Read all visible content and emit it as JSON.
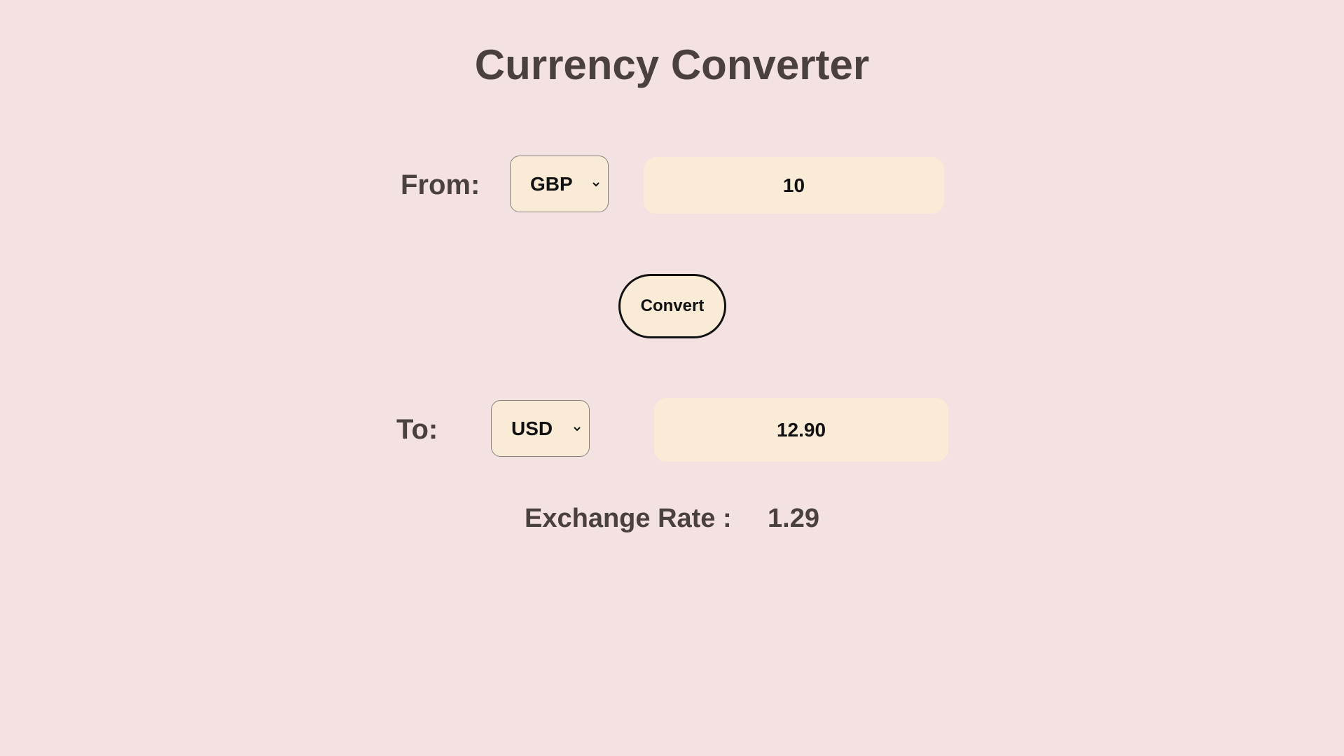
{
  "header": {
    "title": "Currency Converter"
  },
  "from": {
    "label": "From:",
    "currency": "GBP",
    "amount": "10"
  },
  "actions": {
    "convert_label": "Convert"
  },
  "to": {
    "label": "To:",
    "currency": "USD",
    "amount": "12.90"
  },
  "exchange": {
    "label": "Exchange Rate :",
    "value": "1.29"
  },
  "icons": {
    "dropdown": "chevron-down-icon"
  },
  "colors": {
    "background": "#f4e1e1",
    "field": "#faebd7",
    "text": "#4a403e"
  }
}
